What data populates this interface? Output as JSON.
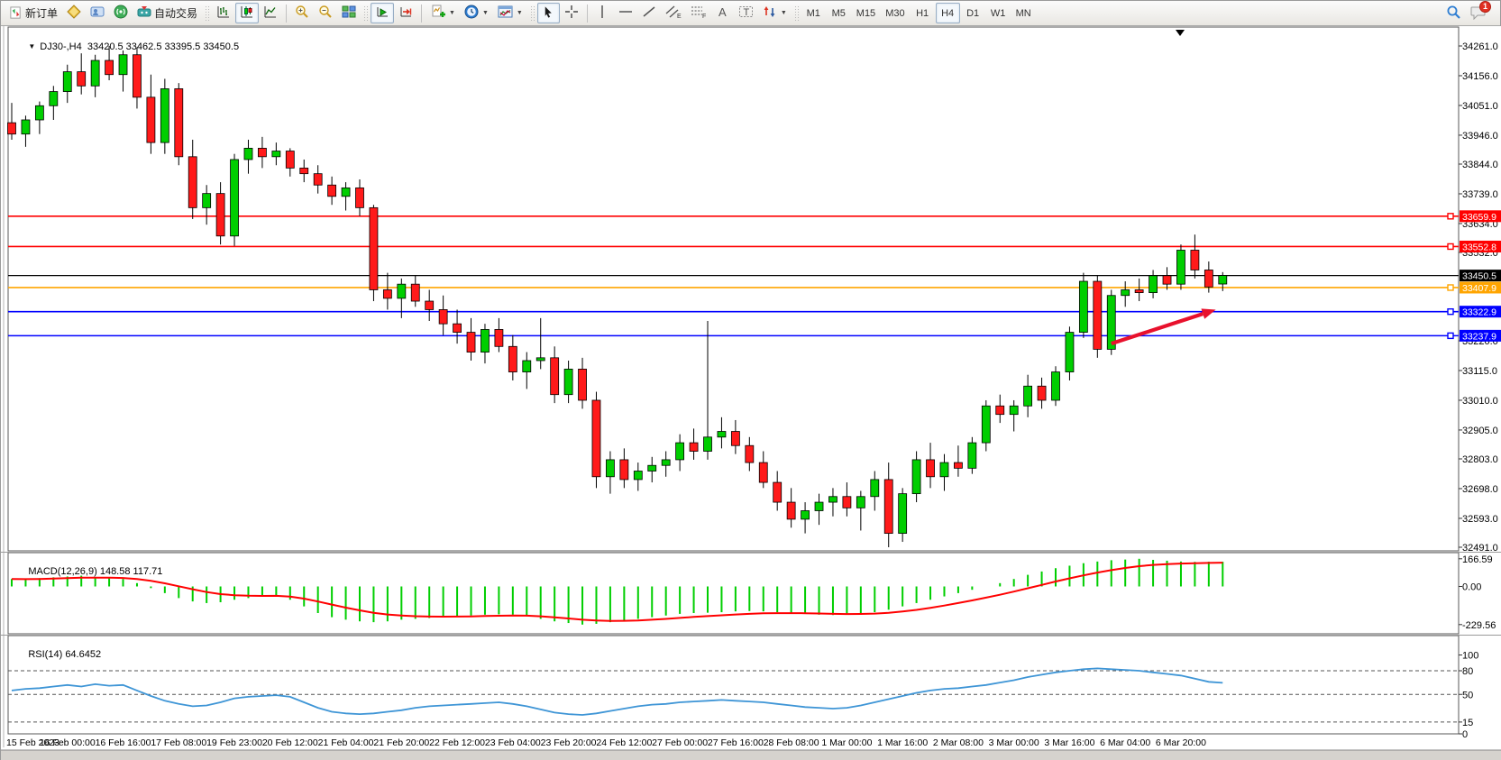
{
  "toolbar": {
    "new_order_label": "新订单",
    "autotrading_label": "自动交易",
    "timeframes": [
      "M1",
      "M5",
      "M15",
      "M30",
      "H1",
      "H4",
      "D1",
      "W1",
      "MN"
    ],
    "active_timeframe": "H4",
    "notification_count": "1",
    "icon_letters": {
      "channel": "E",
      "fibonacci": "F",
      "text": "A",
      "label": "T"
    }
  },
  "chart": {
    "title": "DJ30-,H4",
    "ohlc": "33420.5 33462.5 33395.5 33450.5"
  },
  "chart_data": [
    {
      "type": "candlestick",
      "title": "DJ30-,H4",
      "ylim": [
        32491.0,
        34261.0
      ],
      "y_ticks": [
        34261.0,
        34156.0,
        34051.0,
        33946.0,
        33844.0,
        33739.0,
        33634.0,
        33532.0,
        33220.0,
        33115.0,
        33010.0,
        32905.0,
        32803.0,
        32698.0,
        32593.0,
        32491.0
      ],
      "x_labels": [
        "15 Feb 2023",
        "16 Feb 00:00",
        "16 Feb 16:00",
        "17 Feb 08:00",
        "19 Feb 23:00",
        "20 Feb 12:00",
        "21 Feb 04:00",
        "21 Feb 20:00",
        "22 Feb 12:00",
        "23 Feb 04:00",
        "23 Feb 20:00",
        "24 Feb 12:00",
        "27 Feb 00:00",
        "27 Feb 16:00",
        "28 Feb 08:00",
        "1 Mar 00:00",
        "1 Mar 16:00",
        "2 Mar 08:00",
        "3 Mar 00:00",
        "3 Mar 16:00",
        "6 Mar 04:00",
        "6 Mar 20:00"
      ],
      "candles_per_label": 4,
      "bull_color": "#00CE00",
      "bear_color": "#FF1A1A",
      "current_price": 33450.5,
      "hlines": [
        {
          "price": 33659.9,
          "color": "#FF0000",
          "kind": "resistance"
        },
        {
          "price": 33552.8,
          "color": "#FF0000",
          "kind": "resistance"
        },
        {
          "price": 33450.5,
          "color": "#000000",
          "kind": "current-price"
        },
        {
          "price": 33407.9,
          "color": "#FFA500",
          "kind": "level"
        },
        {
          "price": 33322.9,
          "color": "#0000FF",
          "kind": "support"
        },
        {
          "price": 33237.9,
          "color": "#0000FF",
          "kind": "support"
        }
      ],
      "arrow_annotation": {
        "color": "#E8112D",
        "from_price": 33210,
        "to_price": 33330,
        "from_index": 79,
        "to_index": 86.5
      },
      "candles": [
        [
          33990,
          34060,
          33930,
          33950
        ],
        [
          33950,
          34015,
          33905,
          34000
        ],
        [
          34000,
          34065,
          33950,
          34050
        ],
        [
          34050,
          34120,
          34000,
          34100
        ],
        [
          34100,
          34195,
          34060,
          34170
        ],
        [
          34170,
          34235,
          34090,
          34120
        ],
        [
          34120,
          34230,
          34080,
          34210
        ],
        [
          34210,
          34261,
          34140,
          34160
        ],
        [
          34160,
          34245,
          34100,
          34230
        ],
        [
          34230,
          34255,
          34040,
          34080
        ],
        [
          34080,
          34160,
          33880,
          33920
        ],
        [
          33920,
          34145,
          33880,
          34110
        ],
        [
          34110,
          34130,
          33840,
          33870
        ],
        [
          33870,
          33930,
          33650,
          33690
        ],
        [
          33690,
          33770,
          33630,
          33740
        ],
        [
          33740,
          33780,
          33560,
          33590
        ],
        [
          33590,
          33880,
          33555,
          33860
        ],
        [
          33860,
          33930,
          33810,
          33900
        ],
        [
          33900,
          33940,
          33830,
          33870
        ],
        [
          33870,
          33920,
          33840,
          33890
        ],
        [
          33890,
          33900,
          33800,
          33830
        ],
        [
          33830,
          33860,
          33780,
          33810
        ],
        [
          33810,
          33840,
          33740,
          33770
        ],
        [
          33770,
          33800,
          33700,
          33730
        ],
        [
          33730,
          33780,
          33680,
          33760
        ],
        [
          33760,
          33790,
          33660,
          33690
        ],
        [
          33690,
          33700,
          33360,
          33400
        ],
        [
          33400,
          33460,
          33330,
          33370
        ],
        [
          33370,
          33440,
          33300,
          33420
        ],
        [
          33420,
          33450,
          33340,
          33360
        ],
        [
          33360,
          33400,
          33290,
          33330
        ],
        [
          33330,
          33380,
          33240,
          33280
        ],
        [
          33280,
          33330,
          33210,
          33250
        ],
        [
          33250,
          33300,
          33150,
          33180
        ],
        [
          33180,
          33280,
          33140,
          33260
        ],
        [
          33260,
          33300,
          33180,
          33200
        ],
        [
          33200,
          33240,
          33080,
          33110
        ],
        [
          33110,
          33180,
          33050,
          33150
        ],
        [
          33150,
          33300,
          33120,
          33160
        ],
        [
          33160,
          33200,
          33000,
          33030
        ],
        [
          33030,
          33150,
          33000,
          33120
        ],
        [
          33120,
          33160,
          32980,
          33010
        ],
        [
          33010,
          33040,
          32700,
          32740
        ],
        [
          32740,
          32830,
          32680,
          32800
        ],
        [
          32800,
          32840,
          32700,
          32730
        ],
        [
          32730,
          32790,
          32690,
          32760
        ],
        [
          32760,
          32810,
          32720,
          32780
        ],
        [
          32780,
          32830,
          32740,
          32800
        ],
        [
          32800,
          32890,
          32760,
          32860
        ],
        [
          32860,
          32910,
          32800,
          32830
        ],
        [
          32830,
          33290,
          32800,
          32880
        ],
        [
          32880,
          32950,
          32840,
          32900
        ],
        [
          32900,
          32940,
          32820,
          32850
        ],
        [
          32850,
          32880,
          32760,
          32790
        ],
        [
          32790,
          32830,
          32700,
          32720
        ],
        [
          32720,
          32760,
          32620,
          32650
        ],
        [
          32650,
          32700,
          32560,
          32590
        ],
        [
          32590,
          32650,
          32540,
          32620
        ],
        [
          32620,
          32680,
          32570,
          32650
        ],
        [
          32650,
          32700,
          32600,
          32670
        ],
        [
          32670,
          32720,
          32600,
          32630
        ],
        [
          32630,
          32690,
          32550,
          32670
        ],
        [
          32670,
          32760,
          32620,
          32730
        ],
        [
          32730,
          32790,
          32491,
          32540
        ],
        [
          32540,
          32700,
          32510,
          32680
        ],
        [
          32680,
          32830,
          32650,
          32800
        ],
        [
          32800,
          32860,
          32700,
          32740
        ],
        [
          32740,
          32820,
          32690,
          32790
        ],
        [
          32790,
          32850,
          32740,
          32770
        ],
        [
          32770,
          32880,
          32750,
          32860
        ],
        [
          32860,
          33010,
          32830,
          32990
        ],
        [
          32990,
          33030,
          32930,
          32960
        ],
        [
          32960,
          33010,
          32900,
          32990
        ],
        [
          32990,
          33100,
          32950,
          33060
        ],
        [
          33060,
          33090,
          32980,
          33010
        ],
        [
          33010,
          33130,
          32990,
          33110
        ],
        [
          33110,
          33270,
          33080,
          33250
        ],
        [
          33250,
          33460,
          33230,
          33430
        ],
        [
          33430,
          33450,
          33160,
          33190
        ],
        [
          33190,
          33400,
          33170,
          33380
        ],
        [
          33380,
          33430,
          33340,
          33400
        ],
        [
          33400,
          33440,
          33360,
          33390
        ],
        [
          33390,
          33470,
          33370,
          33450
        ],
        [
          33450,
          33480,
          33400,
          33420
        ],
        [
          33420,
          33560,
          33400,
          33540
        ],
        [
          33540,
          33595,
          33440,
          33470
        ],
        [
          33470,
          33500,
          33390,
          33410
        ],
        [
          33420.5,
          33462.5,
          33395.5,
          33450.5
        ]
      ]
    },
    {
      "type": "macd",
      "label": "MACD(12,26,9)",
      "display_values": "148.58 117.71",
      "y_ticks": [
        "166.59",
        "0.00",
        "-229.56"
      ],
      "histogram_color": "#00CE00",
      "signal_color": "#FF0000",
      "signal_ema_period": 9,
      "histogram": [
        45,
        40,
        50,
        55,
        60,
        65,
        55,
        50,
        45,
        20,
        -10,
        -40,
        -70,
        -90,
        -100,
        -95,
        -80,
        -70,
        -60,
        -55,
        -80,
        -120,
        -160,
        -185,
        -200,
        -210,
        -215,
        -210,
        -200,
        -195,
        -190,
        -185,
        -180,
        -175,
        -170,
        -168,
        -170,
        -180,
        -195,
        -210,
        -220,
        -229.56,
        -225,
        -215,
        -205,
        -195,
        -185,
        -175,
        -165,
        -160,
        -158,
        -155,
        -150,
        -148,
        -150,
        -155,
        -160,
        -165,
        -170,
        -172,
        -170,
        -165,
        -155,
        -140,
        -120,
        -100,
        -80,
        -60,
        -40,
        -20,
        0,
        20,
        45,
        70,
        90,
        110,
        125,
        140,
        150,
        158,
        162,
        166.59,
        160,
        155,
        150,
        148,
        149,
        148.58
      ]
    },
    {
      "type": "line",
      "label": "RSI(14)",
      "display_value": "64.6452",
      "ylim": [
        0,
        100
      ],
      "y_ticks": [
        "100",
        "80",
        "50",
        "15",
        "0"
      ],
      "levels": [
        80,
        50,
        15
      ],
      "line_color": "#3E95D6",
      "values": [
        55,
        57,
        58,
        60,
        62,
        60,
        63,
        61,
        62,
        55,
        48,
        42,
        38,
        35,
        36,
        40,
        45,
        47,
        48,
        49,
        47,
        40,
        33,
        28,
        26,
        25,
        26,
        28,
        30,
        33,
        35,
        36,
        37,
        38,
        39,
        40,
        38,
        35,
        31,
        27,
        25,
        24,
        26,
        29,
        32,
        35,
        37,
        38,
        40,
        41,
        42,
        43,
        42,
        41,
        40,
        38,
        36,
        34,
        33,
        32,
        33,
        36,
        40,
        44,
        48,
        52,
        55,
        57,
        58,
        60,
        62,
        65,
        68,
        72,
        75,
        78,
        80,
        82,
        83,
        82,
        81,
        80,
        78,
        76,
        74,
        70,
        66,
        64.65
      ]
    }
  ]
}
